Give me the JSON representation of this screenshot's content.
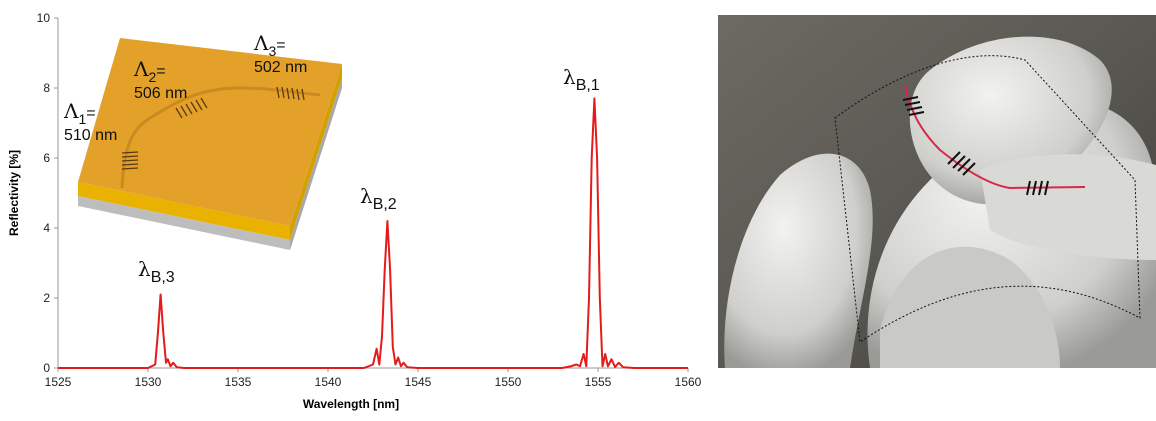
{
  "chart_data": {
    "type": "line",
    "x_label": "Wavelength [nm]",
    "y_label": "Reflectivity [%]",
    "xlim": [
      1525,
      1560
    ],
    "xticks": [
      1525,
      1530,
      1535,
      1540,
      1545,
      1550,
      1555,
      1560
    ],
    "ylim": [
      0,
      10
    ],
    "yticks": [
      0,
      2,
      4,
      6,
      8,
      10
    ],
    "color": "#e31b1b",
    "x": [
      1525,
      1530.0,
      1530.4,
      1530.55,
      1530.7,
      1530.85,
      1531.0,
      1531.1,
      1531.25,
      1531.4,
      1531.6,
      1532,
      1542.0,
      1542.5,
      1542.7,
      1542.85,
      1543.0,
      1543.15,
      1543.3,
      1543.45,
      1543.6,
      1543.75,
      1543.9,
      1544.05,
      1544.2,
      1544.4,
      1545,
      1553.0,
      1553.5,
      1553.8,
      1554.0,
      1554.2,
      1554.35,
      1554.5,
      1554.65,
      1554.8,
      1554.95,
      1555.1,
      1555.25,
      1555.4,
      1555.55,
      1555.75,
      1555.95,
      1556.15,
      1556.4,
      1557,
      1560
    ],
    "values": [
      0,
      0,
      0.1,
      1.0,
      2.1,
      1.0,
      0.15,
      0.25,
      0.05,
      0.15,
      0.02,
      0,
      0,
      0.1,
      0.55,
      0.1,
      0.9,
      2.8,
      4.2,
      2.8,
      0.6,
      0.1,
      0.3,
      0.05,
      0.15,
      0.02,
      0,
      0,
      0.05,
      0.1,
      0.05,
      0.4,
      0.05,
      2.0,
      6.0,
      7.7,
      6.0,
      2.0,
      0.05,
      0.4,
      0.05,
      0.25,
      0.03,
      0.15,
      0.02,
      0,
      0
    ],
    "annotations": [
      {
        "symbol": "λ",
        "sub": "B,3"
      },
      {
        "symbol": "λ",
        "sub": "B,2"
      },
      {
        "symbol": "λ",
        "sub": "B,1"
      }
    ],
    "inset_labels": [
      {
        "symbol": "Λ",
        "sub": "1",
        "eq": "=",
        "value": "510 nm"
      },
      {
        "symbol": "Λ",
        "sub": "2",
        "eq": "=",
        "value": "506 nm"
      },
      {
        "symbol": "Λ",
        "sub": "3",
        "eq": "=",
        "value": "502 nm"
      }
    ]
  }
}
